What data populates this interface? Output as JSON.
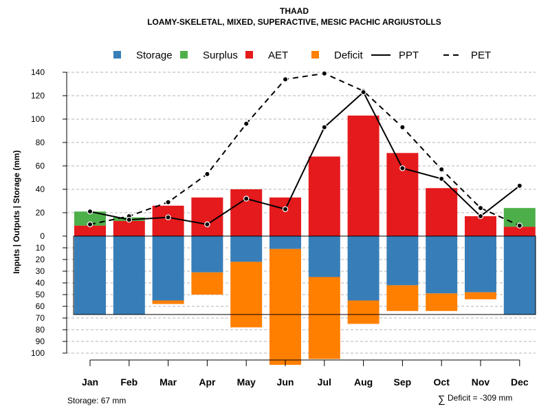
{
  "colors": {
    "storage": "#377eb8",
    "surplus": "#4daf4a",
    "aet": "#e41a1c",
    "deficit": "#ff7f00",
    "grid": "#b3b3b3",
    "line": "#000000"
  },
  "chart_data": {
    "type": "bar",
    "title": "THAAD",
    "subtitle": "LOAMY-SKELETAL, MIXED, SUPERACTIVE, MESIC PACHIC ARGIUSTOLLS",
    "ylabel": "Inputs | Outputs | Storage    (mm)",
    "categories": [
      "Jan",
      "Feb",
      "Mar",
      "Apr",
      "May",
      "Jun",
      "Jul",
      "Aug",
      "Sep",
      "Oct",
      "Nov",
      "Dec"
    ],
    "upper_ylim": [
      0,
      140
    ],
    "upper_ticks": [
      "0",
      "20",
      "40",
      "60",
      "80",
      "100",
      "120",
      "140"
    ],
    "lower_ylim": [
      0,
      100
    ],
    "lower_ticks": [
      "10",
      "20",
      "30",
      "40",
      "50",
      "60",
      "70",
      "80",
      "90",
      "100"
    ],
    "legend": [
      {
        "key": "storage",
        "label": "Storage",
        "kind": "square"
      },
      {
        "key": "surplus",
        "label": "Surplus",
        "kind": "square"
      },
      {
        "key": "aet",
        "label": "AET",
        "kind": "square"
      },
      {
        "key": "deficit",
        "label": "Deficit",
        "kind": "square"
      },
      {
        "key": "ppt",
        "label": "PPT",
        "kind": "solid"
      },
      {
        "key": "pet",
        "label": "PET",
        "kind": "dashed"
      }
    ],
    "series": [
      {
        "name": "AET",
        "values": [
          9,
          13,
          26,
          33,
          40,
          33,
          68,
          103,
          71,
          41,
          17,
          8
        ]
      },
      {
        "name": "Surplus",
        "values": [
          12,
          3,
          0,
          0,
          0,
          0,
          0,
          0,
          0,
          0,
          0,
          16
        ]
      },
      {
        "name": "PPT",
        "values": [
          21,
          14,
          16,
          10,
          32,
          23,
          93,
          123,
          58,
          49,
          17,
          43
        ]
      },
      {
        "name": "PET",
        "values": [
          10,
          17,
          29,
          53,
          96,
          134,
          139,
          124,
          93,
          57,
          24,
          9
        ]
      },
      {
        "name": "Storage",
        "values": [
          67,
          67,
          55,
          31,
          22,
          11,
          35,
          55,
          42,
          49,
          48,
          67
        ]
      },
      {
        "name": "Deficit",
        "values": [
          0,
          0,
          3,
          19,
          56,
          99,
          70,
          20,
          22,
          15,
          6,
          0
        ]
      }
    ],
    "storage_capacity": 67
  },
  "footer": {
    "storage_label": "Storage: 67 mm",
    "deficit_symbol": "∑",
    "deficit_label": "Deficit = -309 mm"
  }
}
